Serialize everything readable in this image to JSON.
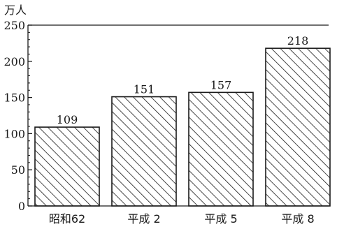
{
  "chart_data": {
    "type": "bar",
    "unit_label": "万人",
    "categories": [
      "昭和62",
      "平成 2",
      "平成 5",
      "平成 8"
    ],
    "values": [
      109,
      151,
      157,
      218
    ],
    "value_labels": [
      "109",
      "151",
      "157",
      "218"
    ],
    "ylim": [
      0,
      250
    ],
    "yticks": [
      0,
      50,
      100,
      150,
      200,
      250
    ],
    "ytick_labels": [
      "0",
      "50",
      "100",
      "150",
      "200",
      "250"
    ],
    "title": "",
    "xlabel": "",
    "ylabel": "",
    "grid": false,
    "bar_fill": "hatched",
    "colors": {
      "ink": "#1a1a1a",
      "background": "#ffffff"
    }
  }
}
